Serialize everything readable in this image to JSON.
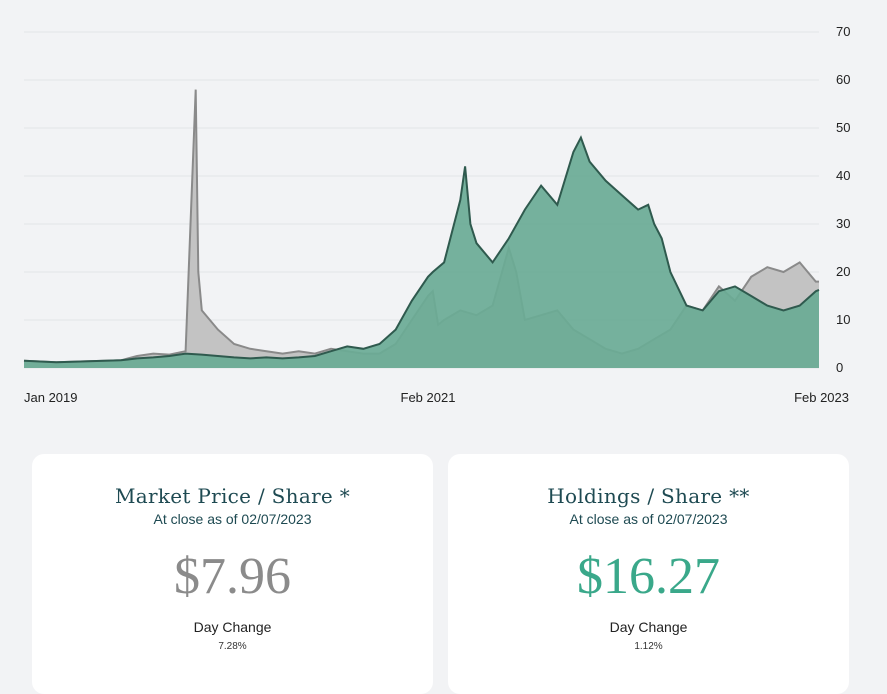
{
  "chart_data": {
    "type": "area",
    "x_tick_labels": [
      "Jan 2019",
      "Feb 2021",
      "Feb 2023"
    ],
    "y_tick_labels": [
      "0",
      "10",
      "20",
      "30",
      "40",
      "50",
      "60",
      "70"
    ],
    "ylim": [
      0,
      70
    ],
    "xlim": [
      "2019-01",
      "2023-02"
    ],
    "grid": true,
    "series": [
      {
        "color": "#c3c3c3",
        "line_color": "#8a8a8a",
        "points": [
          [
            "2019-01",
            1.5
          ],
          [
            "2019-03",
            1.2
          ],
          [
            "2019-05",
            1.4
          ],
          [
            "2019-07",
            1.6
          ],
          [
            "2019-08",
            2.5
          ],
          [
            "2019-09",
            3
          ],
          [
            "2019-10",
            2.8
          ],
          [
            "2019-11",
            3.5
          ],
          [
            "2019-11-20",
            58
          ],
          [
            "2019-11-25",
            20
          ],
          [
            "2019-12",
            12
          ],
          [
            "2020-01",
            8
          ],
          [
            "2020-02",
            5
          ],
          [
            "2020-03",
            4
          ],
          [
            "2020-04",
            3.5
          ],
          [
            "2020-05",
            3
          ],
          [
            "2020-06",
            3.5
          ],
          [
            "2020-07",
            3
          ],
          [
            "2020-08",
            4
          ],
          [
            "2020-09",
            3.5
          ],
          [
            "2020-10",
            3
          ],
          [
            "2020-11",
            3
          ],
          [
            "2020-12",
            5
          ],
          [
            "2021-01",
            10
          ],
          [
            "2021-02",
            15
          ],
          [
            "2021-02-10",
            16
          ],
          [
            "2021-02-20",
            9
          ],
          [
            "2021-03",
            10
          ],
          [
            "2021-04",
            12
          ],
          [
            "2021-05",
            11
          ],
          [
            "2021-06",
            13
          ],
          [
            "2021-07",
            25
          ],
          [
            "2021-07-15",
            20
          ],
          [
            "2021-08",
            10
          ],
          [
            "2021-09",
            11
          ],
          [
            "2021-10",
            12
          ],
          [
            "2021-11",
            8
          ],
          [
            "2021-12",
            6
          ],
          [
            "2022-01",
            4
          ],
          [
            "2022-02",
            3
          ],
          [
            "2022-03",
            4
          ],
          [
            "2022-04",
            6
          ],
          [
            "2022-05",
            8
          ],
          [
            "2022-06",
            13
          ],
          [
            "2022-07",
            12
          ],
          [
            "2022-08",
            17
          ],
          [
            "2022-09",
            14
          ],
          [
            "2022-10",
            19
          ],
          [
            "2022-11",
            21
          ],
          [
            "2022-12",
            20
          ],
          [
            "2023-01",
            22
          ],
          [
            "2023-02",
            18
          ],
          [
            "2023-02-07",
            18
          ]
        ]
      },
      {
        "color": "#6aab95",
        "line_color": "#2f5a4e",
        "points": [
          [
            "2019-01",
            1.5
          ],
          [
            "2019-03",
            1.2
          ],
          [
            "2019-05",
            1.4
          ],
          [
            "2019-07",
            1.6
          ],
          [
            "2019-08",
            2
          ],
          [
            "2019-09",
            2.2
          ],
          [
            "2019-10",
            2.5
          ],
          [
            "2019-11",
            3
          ],
          [
            "2019-12",
            2.8
          ],
          [
            "2020-01",
            2.5
          ],
          [
            "2020-02",
            2.2
          ],
          [
            "2020-03",
            2
          ],
          [
            "2020-04",
            2.2
          ],
          [
            "2020-05",
            2
          ],
          [
            "2020-06",
            2.2
          ],
          [
            "2020-07",
            2.5
          ],
          [
            "2020-08",
            3.5
          ],
          [
            "2020-09",
            4.5
          ],
          [
            "2020-10",
            4
          ],
          [
            "2020-11",
            5
          ],
          [
            "2020-12",
            8
          ],
          [
            "2021-01",
            14
          ],
          [
            "2021-02",
            19
          ],
          [
            "2021-02-10",
            20
          ],
          [
            "2021-03",
            22
          ],
          [
            "2021-04",
            35
          ],
          [
            "2021-04-10",
            42
          ],
          [
            "2021-04-20",
            30
          ],
          [
            "2021-05",
            26
          ],
          [
            "2021-06",
            22
          ],
          [
            "2021-07",
            27
          ],
          [
            "2021-08",
            33
          ],
          [
            "2021-09",
            38
          ],
          [
            "2021-10",
            34
          ],
          [
            "2021-11",
            45
          ],
          [
            "2021-11-15",
            48
          ],
          [
            "2021-12",
            43
          ],
          [
            "2022-01",
            39
          ],
          [
            "2022-02",
            36
          ],
          [
            "2022-03",
            33
          ],
          [
            "2022-03-20",
            34
          ],
          [
            "2022-04",
            30
          ],
          [
            "2022-04-15",
            27
          ],
          [
            "2022-05",
            20
          ],
          [
            "2022-06",
            13
          ],
          [
            "2022-07",
            12
          ],
          [
            "2022-08",
            16
          ],
          [
            "2022-09",
            17
          ],
          [
            "2022-10",
            15
          ],
          [
            "2022-11",
            13
          ],
          [
            "2022-12",
            12
          ],
          [
            "2023-01",
            13
          ],
          [
            "2023-02",
            16
          ],
          [
            "2023-02-07",
            16.27
          ]
        ]
      }
    ]
  },
  "cards": {
    "market": {
      "title": "Market Price / Share *",
      "subtitle": "At close as of 02/07/2023",
      "value": "$7.96",
      "label": "Day Change",
      "change": "7.28%"
    },
    "holdings": {
      "title": "Holdings / Share **",
      "subtitle": "At close as of 02/07/2023",
      "value": "$16.27",
      "label": "Day Change",
      "change": "1.12%"
    }
  }
}
